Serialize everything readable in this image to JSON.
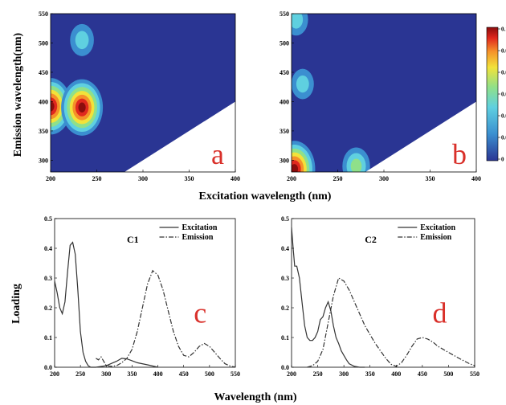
{
  "figure": {
    "top_xlabel": "Excitation wavelength (nm)",
    "top_ylabel": "Emission wavelength(nm)",
    "bottom_xlabel": "Wavelength (nm)",
    "bottom_ylabel": "Loading"
  },
  "colors": {
    "background_blue": "#2a3593",
    "contour_ramp": [
      "#2a3593",
      "#3b8fd0",
      "#5fd0e0",
      "#8fe08a",
      "#f2e23a",
      "#f5912a",
      "#e0281e",
      "#8b0d0d"
    ]
  },
  "chart_data": [
    {
      "id": "a",
      "type": "heatmap",
      "panel_label": "a",
      "xlim": [
        200,
        400
      ],
      "ylim": [
        280,
        550
      ],
      "xticks": [
        "200",
        "250",
        "300",
        "350",
        "400"
      ],
      "yticks": [
        "300",
        "350",
        "400",
        "450",
        "500",
        "550"
      ],
      "peaks": [
        {
          "ex": 200,
          "em": 392,
          "intensity": 1.0
        },
        {
          "ex": 234,
          "em": 390,
          "intensity": 1.0
        },
        {
          "ex": 234,
          "em": 505,
          "intensity": 0.3
        }
      ],
      "blank_region": "triangle below line from (ex 280, em 280) to (ex 400, em 400)"
    },
    {
      "id": "b",
      "type": "heatmap",
      "panel_label": "b",
      "xlim": [
        200,
        400
      ],
      "ylim": [
        280,
        550
      ],
      "xticks": [
        "200",
        "250",
        "300",
        "350",
        "400"
      ],
      "yticks": [
        "300",
        "350",
        "400",
        "450",
        "500",
        "550"
      ],
      "peaks": [
        {
          "ex": 203,
          "em": 285,
          "intensity": 1.0
        },
        {
          "ex": 270,
          "em": 290,
          "intensity": 0.45
        },
        {
          "ex": 212,
          "em": 430,
          "intensity": 0.25
        },
        {
          "ex": 205,
          "em": 540,
          "intensity": 0.3
        }
      ],
      "blank_region": "triangle below line from (ex 280, em 280) to (ex 400, em 400)"
    },
    {
      "id": "colorbar",
      "type": "heatmap",
      "tick_labels": [
        "0.1",
        "0.0",
        "0.0",
        "0.0",
        "0.0",
        "0.0",
        "0"
      ]
    },
    {
      "id": "c",
      "type": "line",
      "panel_label": "c",
      "component_title": "C1",
      "xlim": [
        200,
        550
      ],
      "ylim": [
        0,
        0.5
      ],
      "xticks": [
        "200",
        "250",
        "300",
        "350",
        "400",
        "450",
        "500",
        "550"
      ],
      "yticks": [
        "0.0",
        "0.1",
        "0.2",
        "0.3",
        "0.4",
        "0.5"
      ],
      "series": [
        {
          "name": "Excitation",
          "style": "solid",
          "x": [
            200,
            205,
            210,
            215,
            220,
            225,
            230,
            235,
            240,
            245,
            250,
            255,
            260,
            265,
            270,
            280,
            300,
            320,
            330,
            340,
            350,
            360,
            380,
            400
          ],
          "y": [
            0.29,
            0.25,
            0.2,
            0.18,
            0.22,
            0.32,
            0.41,
            0.42,
            0.38,
            0.26,
            0.12,
            0.05,
            0.02,
            0.005,
            0.0,
            0.0,
            0.005,
            0.02,
            0.03,
            0.028,
            0.022,
            0.015,
            0.008,
            0.0
          ]
        },
        {
          "name": "Emission",
          "style": "dashdot",
          "x": [
            280,
            285,
            290,
            295,
            300,
            310,
            320,
            330,
            340,
            350,
            360,
            370,
            380,
            390,
            400,
            410,
            420,
            430,
            440,
            450,
            460,
            470,
            480,
            490,
            500,
            510,
            520,
            530,
            540,
            550
          ],
          "y": [
            0.03,
            0.025,
            0.035,
            0.02,
            0.005,
            0.003,
            0.005,
            0.015,
            0.03,
            0.06,
            0.12,
            0.2,
            0.28,
            0.325,
            0.31,
            0.26,
            0.19,
            0.12,
            0.07,
            0.04,
            0.035,
            0.05,
            0.07,
            0.08,
            0.07,
            0.05,
            0.03,
            0.012,
            0.004,
            0.0
          ]
        }
      ]
    },
    {
      "id": "d",
      "type": "line",
      "panel_label": "d",
      "component_title": "C2",
      "xlim": [
        200,
        550
      ],
      "ylim": [
        0,
        0.5
      ],
      "xticks": [
        "200",
        "250",
        "300",
        "350",
        "400",
        "450",
        "500",
        "550"
      ],
      "yticks": [
        "0.0",
        "0.1",
        "0.2",
        "0.3",
        "0.4",
        "0.5"
      ],
      "series": [
        {
          "name": "Excitation",
          "style": "solid",
          "x": [
            200,
            203,
            206,
            210,
            215,
            220,
            225,
            230,
            235,
            240,
            245,
            250,
            255,
            260,
            265,
            270,
            275,
            280,
            285,
            290,
            295,
            300,
            305,
            310,
            320,
            330,
            340
          ],
          "y": [
            0.47,
            0.4,
            0.34,
            0.34,
            0.3,
            0.22,
            0.14,
            0.1,
            0.09,
            0.09,
            0.1,
            0.12,
            0.16,
            0.17,
            0.2,
            0.22,
            0.19,
            0.14,
            0.1,
            0.08,
            0.055,
            0.04,
            0.025,
            0.012,
            0.003,
            0.0,
            0.0
          ]
        },
        {
          "name": "Emission",
          "style": "dashdot",
          "x": [
            230,
            240,
            250,
            260,
            270,
            280,
            290,
            300,
            310,
            320,
            330,
            340,
            350,
            360,
            370,
            380,
            390,
            400,
            410,
            420,
            430,
            440,
            450,
            460,
            470,
            480,
            490,
            500,
            520,
            540,
            550
          ],
          "y": [
            0.0,
            0.005,
            0.02,
            0.06,
            0.15,
            0.24,
            0.3,
            0.29,
            0.26,
            0.22,
            0.18,
            0.14,
            0.11,
            0.08,
            0.055,
            0.03,
            0.01,
            0.003,
            0.015,
            0.04,
            0.07,
            0.095,
            0.1,
            0.095,
            0.085,
            0.07,
            0.06,
            0.05,
            0.03,
            0.012,
            0.005
          ]
        }
      ]
    }
  ]
}
